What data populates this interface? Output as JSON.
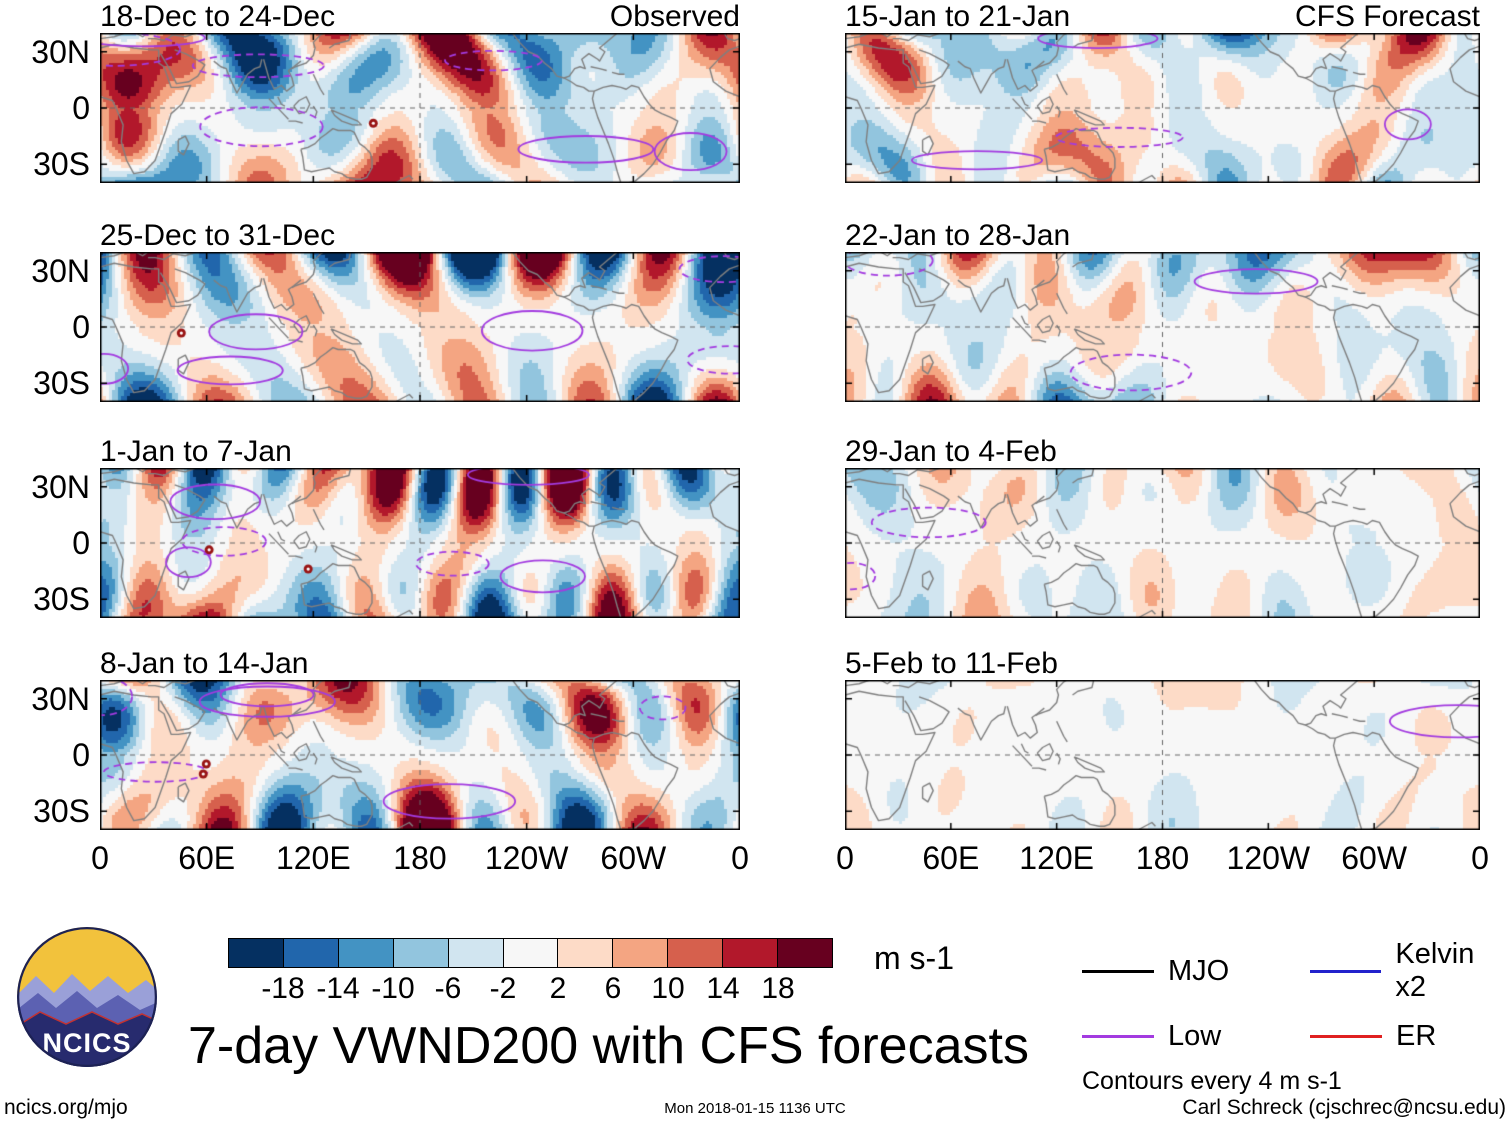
{
  "figure": {
    "title": "7-day VWND200 with CFS forecasts",
    "logo_text": "NCICS",
    "footer_left": "ncics.org/mjo",
    "footer_center": "Mon 2018-01-15 1136 UTC",
    "footer_right": "Carl Schreck (cjschrec@ncsu.edu)"
  },
  "colorbar": {
    "unit": "m s-1",
    "levels": [
      -18,
      -14,
      -10,
      -6,
      -2,
      2,
      6,
      10,
      14,
      18
    ],
    "colors": [
      "#053061",
      "#2166ac",
      "#4393c3",
      "#92c5de",
      "#d1e5f0",
      "#f7f7f7",
      "#fddbc7",
      "#f4a582",
      "#d6604d",
      "#b2182b",
      "#67001f"
    ]
  },
  "legend": {
    "items": [
      {
        "label": "MJO",
        "color": "#000000"
      },
      {
        "label": "Kelvin x2",
        "color": "#2222cc"
      },
      {
        "label": "Low",
        "color": "#a33be0"
      },
      {
        "label": "ER",
        "color": "#e02020"
      }
    ],
    "note": "Contours every 4 m s-1"
  },
  "chart_data": {
    "type": "heatmap",
    "title": "7-day VWND200 with CFS forecasts",
    "units": "m s-1",
    "contour_interval": 4,
    "description": "Eight longitude-latitude map panels of 7-day mean 200 hPa meridional wind (VWND200) anomalies shaded every 4 m s-1 (blue negative, red positive). Left column shows observed weekly means, right column shows CFS forecast weekly means; forecast amplitude weakens with lead time. Purple contours mark low-frequency filtered anomalies; small dark-red symbols mark tropical cyclones in the observed panels.",
    "lon_range": [
      0,
      360
    ],
    "lat_range": [
      -40,
      40
    ],
    "x_tick_lons": [
      0,
      60,
      120,
      180,
      240,
      300,
      360
    ],
    "x_tick_labels": [
      "0",
      "60E",
      "120E",
      "180",
      "120W",
      "60W",
      "0"
    ],
    "y_tick_lats": [
      30,
      0,
      -30
    ],
    "y_tick_labels": [
      "30N",
      "0",
      "30S"
    ],
    "fill_levels": [
      -18,
      -14,
      -10,
      -6,
      -2,
      2,
      6,
      10,
      14,
      18
    ],
    "fill_colors": [
      "#053061",
      "#2166ac",
      "#4393c3",
      "#92c5de",
      "#d1e5f0",
      "#f7f7f7",
      "#fddbc7",
      "#f4a582",
      "#d6604d",
      "#b2182b",
      "#67001f"
    ],
    "columns": [
      "Observed",
      "CFS Forecast"
    ],
    "panels": [
      {
        "title": "18-Dec to 24-Dec",
        "column": "Observed",
        "corner_label": "Observed",
        "relative_amplitude": 1.0,
        "seed": 11,
        "low_contours": 7,
        "storm_markers": 1
      },
      {
        "title": "25-Dec to 31-Dec",
        "column": "Observed",
        "corner_label": "",
        "relative_amplitude": 1.0,
        "seed": 23,
        "low_contours": 6,
        "storm_markers": 1
      },
      {
        "title": "1-Jan to 7-Jan",
        "column": "Observed",
        "corner_label": "",
        "relative_amplitude": 1.05,
        "seed": 37,
        "low_contours": 6,
        "storm_markers": 2
      },
      {
        "title": "8-Jan to 14-Jan",
        "column": "Observed",
        "corner_label": "",
        "relative_amplitude": 1.0,
        "seed": 49,
        "low_contours": 6,
        "storm_markers": 2
      },
      {
        "title": "15-Jan to 21-Jan",
        "column": "CFS Forecast",
        "corner_label": "CFS Forecast",
        "relative_amplitude": 0.8,
        "seed": 58,
        "low_contours": 4,
        "storm_markers": 0
      },
      {
        "title": "22-Jan to 28-Jan",
        "column": "CFS Forecast",
        "corner_label": "",
        "relative_amplitude": 0.55,
        "seed": 66,
        "low_contours": 3,
        "storm_markers": 0
      },
      {
        "title": "29-Jan to 4-Feb",
        "column": "CFS Forecast",
        "corner_label": "",
        "relative_amplitude": 0.35,
        "seed": 72,
        "low_contours": 2,
        "storm_markers": 0
      },
      {
        "title": "5-Feb to 11-Feb",
        "column": "CFS Forecast",
        "corner_label": "",
        "relative_amplitude": 0.28,
        "seed": 85,
        "low_contours": 1,
        "storm_markers": 0
      }
    ]
  }
}
